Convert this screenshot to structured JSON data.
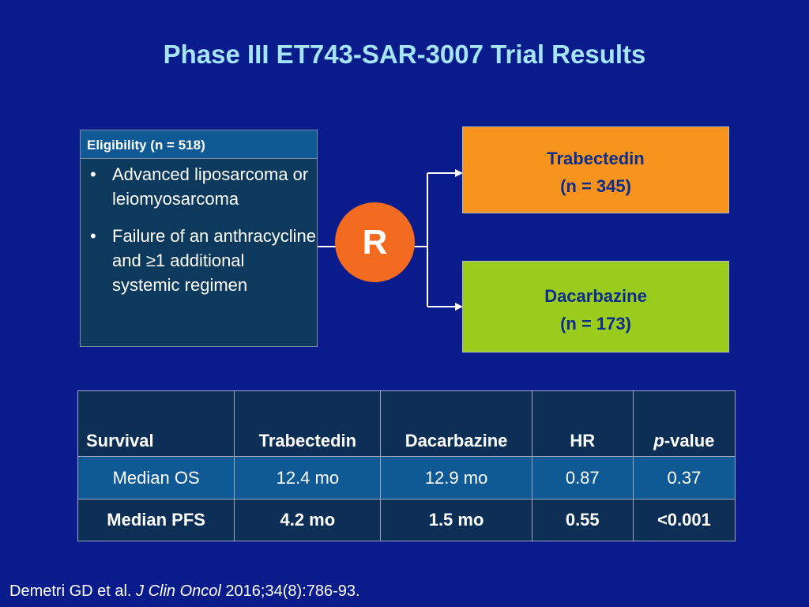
{
  "title": "Phase III ET743-SAR-3007 Trial Results",
  "eligibility": {
    "header": "Eligibility (n = 518)",
    "bullet": "•",
    "items": [
      "Advanced liposarcoma or leiomyosarcoma",
      "Failure of an anthracycline and ≥1 additional systemic regimen"
    ]
  },
  "randomization": {
    "label": "R"
  },
  "arms": {
    "trabectedin": {
      "name": "Trabectedin",
      "n": "(n = 345)"
    },
    "dacarbazine": {
      "name": "Dacarbazine",
      "n": "(n = 173)"
    }
  },
  "table": {
    "headers": {
      "survival": "Survival",
      "trabectedin": "Trabectedin",
      "dacarbazine": "Dacarbazine",
      "hr": "HR",
      "p_italic": "p",
      "p_rest": "-value"
    },
    "rows": [
      {
        "label": "Median OS",
        "trabectedin": "12.4 mo",
        "dacarbazine": "12.9 mo",
        "hr": "0.87",
        "p": "0.37"
      },
      {
        "label": "Median PFS",
        "trabectedin": "4.2 mo",
        "dacarbazine": "1.5 mo",
        "hr": "0.55",
        "p": "<0.001"
      }
    ]
  },
  "citation": {
    "authors": "Demetri GD et al. ",
    "journal": "J Clin Oncol",
    "details": " 2016;34(8):786-93."
  },
  "colors": {
    "background": "#0a1c8c",
    "title": "#a6e4f7",
    "randomize_circle": "#f36b21",
    "trabectedin_box": "#f7941d",
    "dacarbazine_box": "#9acc1e",
    "arm_text": "#0d2d8c"
  }
}
